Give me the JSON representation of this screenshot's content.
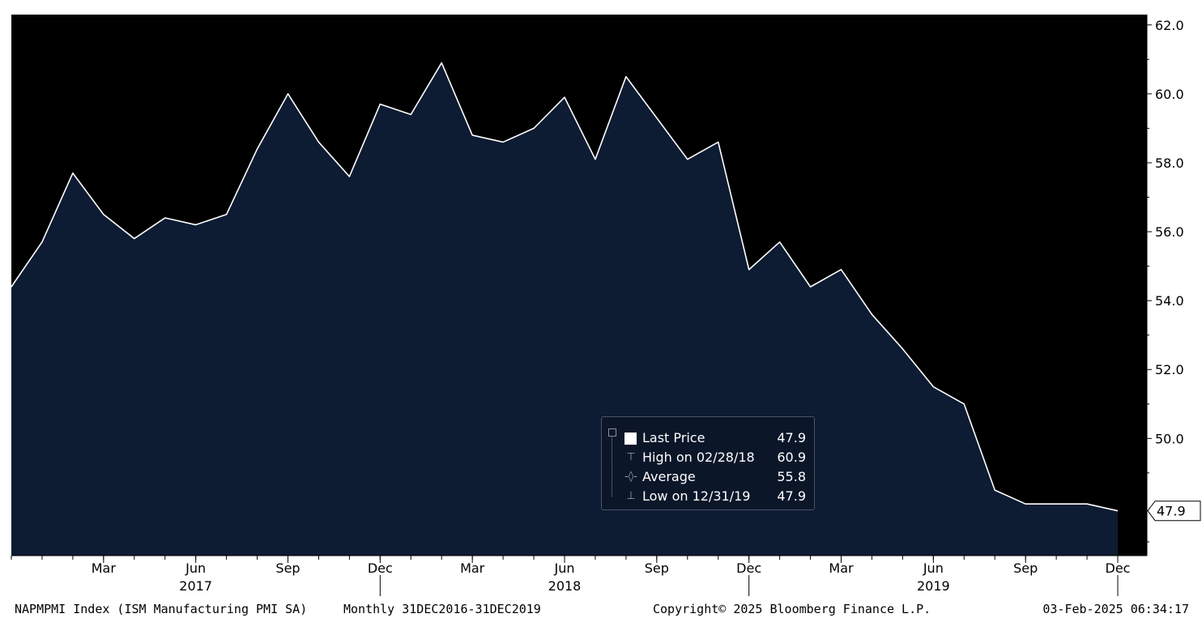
{
  "chart_data": {
    "type": "area",
    "series": [
      {
        "name": "Last Price",
        "x": [
          "Dec 2016",
          "Jan 2017",
          "Feb 2017",
          "Mar 2017",
          "Apr 2017",
          "May 2017",
          "Jun 2017",
          "Jul 2017",
          "Aug 2017",
          "Sep 2017",
          "Oct 2017",
          "Nov 2017",
          "Dec 2017",
          "Jan 2018",
          "Feb 2018",
          "Mar 2018",
          "Apr 2018",
          "May 2018",
          "Jun 2018",
          "Jul 2018",
          "Aug 2018",
          "Sep 2018",
          "Oct 2018",
          "Nov 2018",
          "Dec 2018",
          "Jan 2019",
          "Feb 2019",
          "Mar 2019",
          "Apr 2019",
          "May 2019",
          "Jun 2019",
          "Jul 2019",
          "Aug 2019",
          "Sep 2019",
          "Oct 2019",
          "Nov 2019",
          "Dec 2019"
        ],
        "values": [
          54.4,
          55.7,
          57.7,
          56.5,
          55.8,
          56.4,
          56.2,
          56.5,
          58.4,
          60.0,
          58.6,
          57.6,
          59.7,
          59.4,
          60.9,
          58.8,
          58.6,
          59.0,
          59.9,
          58.1,
          60.5,
          59.3,
          58.1,
          58.6,
          54.9,
          55.7,
          54.4,
          54.9,
          53.6,
          52.6,
          51.5,
          51.0,
          48.5,
          48.1,
          48.1,
          48.1,
          47.9
        ]
      }
    ],
    "ylim": [
      46.6,
      62.3
    ],
    "y_ticks": [
      "62.0",
      "60.0",
      "58.0",
      "56.0",
      "54.0",
      "52.0",
      "50.0"
    ],
    "x_ticks": [
      "Mar",
      "Jun",
      "Sep",
      "Dec",
      "Mar",
      "Jun",
      "Sep",
      "Dec",
      "Mar",
      "Jun",
      "Sep",
      "Dec"
    ],
    "year_labels": [
      "2017",
      "2018",
      "2019"
    ],
    "last_value_label": "47.9",
    "colors": {
      "plot_background": "#000000",
      "area_fill": "#0d1b33",
      "line": "#ffffff",
      "text": "#000000"
    },
    "legend": {
      "placement": "bottom-center",
      "entries": [
        {
          "label": "Last Price",
          "value": "47.9",
          "icon": "square-swatch"
        },
        {
          "label": "High on 02/28/18",
          "value": "60.9",
          "icon": "high-marker-icon"
        },
        {
          "label": "Average",
          "value": "55.8",
          "icon": "average-marker-icon"
        },
        {
          "label": "Low on 12/31/19",
          "value": "47.9",
          "icon": "low-marker-icon"
        }
      ]
    },
    "grid": false
  },
  "footer": {
    "ticker": "NAPMPMI Index (ISM Manufacturing PMI SA)",
    "period": "Monthly 31DEC2016-31DEC2019",
    "copyright": "Copyright© 2025 Bloomberg Finance L.P.",
    "timestamp": "03-Feb-2025 06:34:17"
  }
}
